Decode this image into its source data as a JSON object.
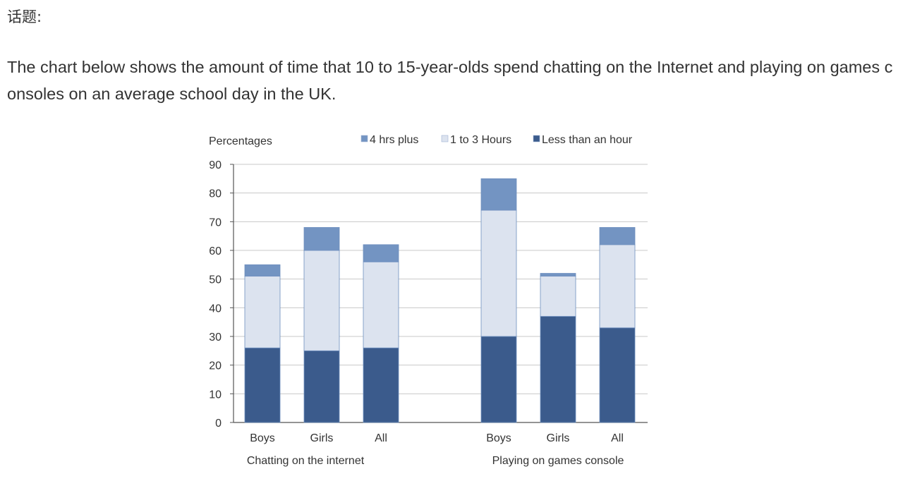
{
  "topic_label": "话题:",
  "prompt_text": "The chart below shows the amount of time that 10 to 15-year-olds spend chatting on the Internet and playing on games consoles on an average school day in the UK.",
  "chart_data": {
    "type": "bar",
    "stacked": true,
    "ylabel": "Percentages",
    "ylim": [
      0,
      90
    ],
    "yticks": [
      0,
      10,
      20,
      30,
      40,
      50,
      60,
      70,
      80,
      90
    ],
    "grid": true,
    "legend_position": "top",
    "groups": [
      {
        "label": "Chatting on the internet",
        "categories": [
          "Boys",
          "Girls",
          "All"
        ]
      },
      {
        "label": "Playing on games console",
        "categories": [
          "Boys",
          "Girls",
          "All"
        ]
      }
    ],
    "series": [
      {
        "name": "Less than an hour",
        "color": "#3b5b8c",
        "values": [
          26,
          25,
          26,
          30,
          37,
          33
        ]
      },
      {
        "name": "1 to 3 Hours",
        "color": "#dce3ef",
        "values": [
          25,
          35,
          30,
          44,
          14,
          29
        ]
      },
      {
        "name": "4 hrs plus",
        "color": "#7394c2",
        "values": [
          4,
          8,
          6,
          11,
          1,
          6
        ]
      }
    ],
    "legend_order": [
      "4 hrs plus",
      "1 to 3 Hours",
      "Less than an hour"
    ]
  }
}
